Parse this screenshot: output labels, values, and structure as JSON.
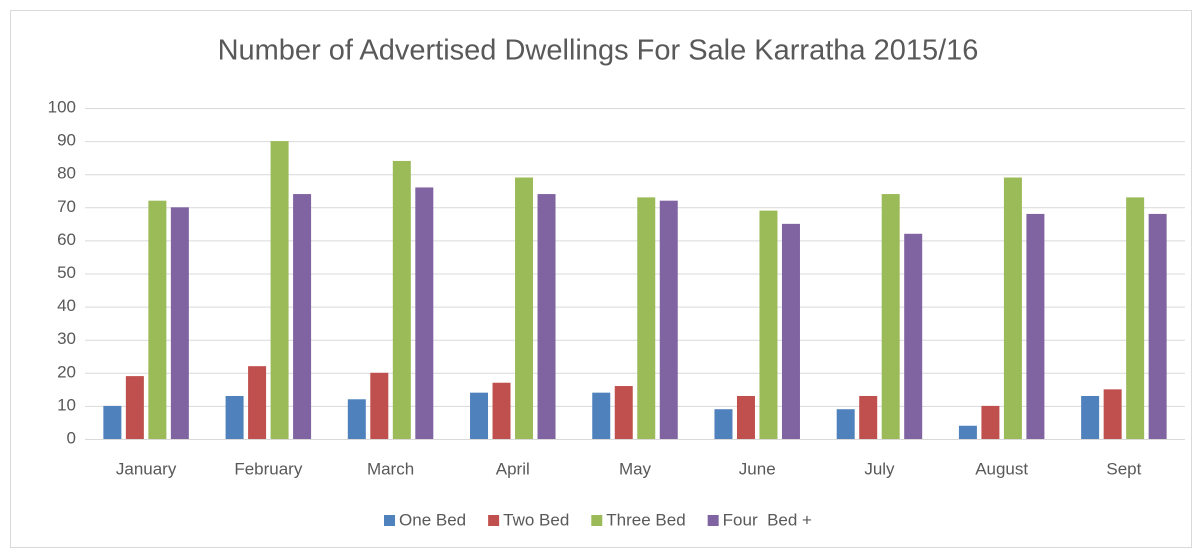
{
  "chart_data": {
    "type": "bar",
    "title": "Number of Advertised Dwellings For Sale Karratha 2015/16",
    "categories": [
      "January",
      "February",
      "March",
      "April",
      "May",
      "June",
      "July",
      "August",
      "Sept"
    ],
    "series": [
      {
        "name": "One Bed",
        "color": "#4f81bd",
        "values": [
          10,
          13,
          12,
          14,
          14,
          9,
          9,
          4,
          13
        ]
      },
      {
        "name": "Two Bed",
        "color": "#c0504d",
        "values": [
          19,
          22,
          20,
          17,
          16,
          13,
          13,
          10,
          15
        ]
      },
      {
        "name": "Three Bed",
        "color": "#9bbb59",
        "values": [
          72,
          90,
          84,
          79,
          73,
          69,
          74,
          79,
          73
        ]
      },
      {
        "name": "Four  Bed +",
        "color": "#8064a2",
        "values": [
          70,
          74,
          76,
          74,
          72,
          65,
          62,
          68,
          68
        ]
      }
    ],
    "ylim": [
      0,
      100
    ],
    "yticks": [
      0,
      10,
      20,
      30,
      40,
      50,
      60,
      70,
      80,
      90,
      100
    ],
    "grid": true,
    "legend": "bottom"
  }
}
